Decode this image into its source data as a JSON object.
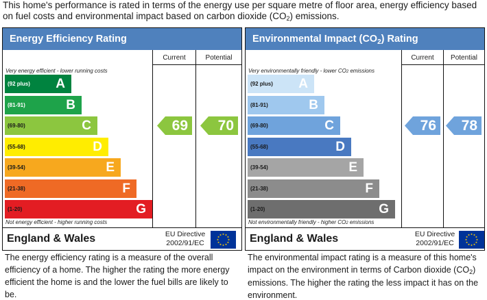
{
  "intro": {
    "before_sub": "This home's performance is rated in terms of the energy use per square metre of floor area, energy efficiency based on fuel costs and environmental impact based on carbon dioxide (CO",
    "sub": "2",
    "after_sub": ") emissions."
  },
  "columns": {
    "current": "Current",
    "potential": "Potential"
  },
  "energy": {
    "title": "Energy Efficiency Rating",
    "top_caption": "Very energy efficient - lower running costs",
    "bottom_caption": "Not energy efficient - higher running costs",
    "bands": [
      {
        "range": "(92 plus)",
        "grade": "A",
        "color": "#00833f",
        "range_color": "#ffffff"
      },
      {
        "range": "(81-91)",
        "grade": "B",
        "color": "#1ea34a",
        "range_color": "#ffffff"
      },
      {
        "range": "(69-80)",
        "grade": "C",
        "color": "#8cc63f",
        "range_color": "#1a1a1a"
      },
      {
        "range": "(55-68)",
        "grade": "D",
        "color": "#ffed00",
        "range_color": "#1a1a1a"
      },
      {
        "range": "(39-54)",
        "grade": "E",
        "color": "#f7a81e",
        "range_color": "#1a1a1a"
      },
      {
        "range": "(21-38)",
        "grade": "F",
        "color": "#ef6a25",
        "range_color": "#1a1a1a"
      },
      {
        "range": "(1-20)",
        "grade": "G",
        "color": "#e31d23",
        "range_color": "#1a1a1a"
      }
    ],
    "current": {
      "value": "69",
      "color": "#8cc63f"
    },
    "potential": {
      "value": "70",
      "color": "#8cc63f"
    },
    "description": "The energy efficiency rating is a measure of the overall efficiency of a home. The higher the rating the more energy efficient the home is and the lower the fuel bills are likely to be."
  },
  "environment": {
    "title_before_sub": "Environmental Impact (CO",
    "title_sub": "2",
    "title_after_sub": ") Rating",
    "top_caption_before": "Very environmentally friendly - lower CO",
    "top_caption_sub": "2",
    "top_caption_after": " emissions",
    "bottom_caption_before": "Not environmentally friendly - higher CO",
    "bottom_caption_sub": "2",
    "bottom_caption_after": " emissions",
    "bands": [
      {
        "range": "(92 plus)",
        "grade": "A",
        "color": "#cce4f7",
        "range_color": "#1a1a1a"
      },
      {
        "range": "(81-91)",
        "grade": "B",
        "color": "#9fc8ee",
        "range_color": "#1a1a1a"
      },
      {
        "range": "(69-80)",
        "grade": "C",
        "color": "#6fa3dc",
        "range_color": "#1a1a1a"
      },
      {
        "range": "(55-68)",
        "grade": "D",
        "color": "#4979c1",
        "range_color": "#1a1a1a"
      },
      {
        "range": "(39-54)",
        "grade": "E",
        "color": "#a5a5a5",
        "range_color": "#1a1a1a"
      },
      {
        "range": "(21-38)",
        "grade": "F",
        "color": "#8c8c8c",
        "range_color": "#1a1a1a"
      },
      {
        "range": "(1-20)",
        "grade": "G",
        "color": "#6e6e6e",
        "range_color": "#1a1a1a"
      }
    ],
    "current": {
      "value": "76",
      "color": "#6fa3dc"
    },
    "potential": {
      "value": "78",
      "color": "#6fa3dc"
    },
    "description_before_sub": "The environmental impact rating is a measure of this home's impact on the environment in terms of Carbon dioxide (CO",
    "description_sub": "2",
    "description_after_sub": ") emissions. The higher the rating the less impact it has on the environment."
  },
  "footer": {
    "region": "England & Wales",
    "directive_line1": "EU Directive",
    "directive_line2": "2002/91/EC",
    "flag_icon": "eu-flag-icon"
  }
}
